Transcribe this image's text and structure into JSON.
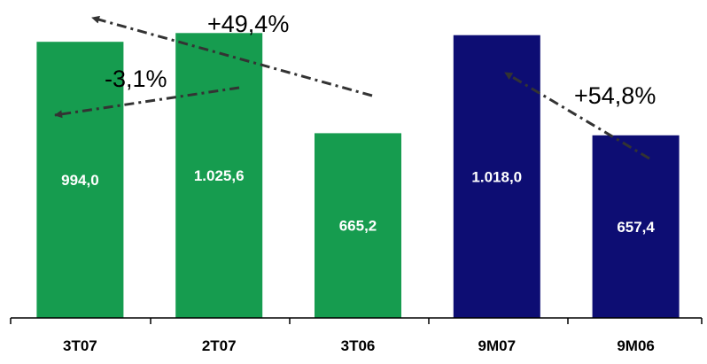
{
  "chart_data": {
    "type": "bar",
    "categories": [
      "3T07",
      "2T07",
      "3T06",
      "9M07",
      "9M06"
    ],
    "values": [
      994.0,
      1025.6,
      665.2,
      1018.0,
      657.4
    ],
    "value_labels": [
      "994,0",
      "1.025,6",
      "665,2",
      "1.018,0",
      "657,4"
    ],
    "bar_colors": [
      "#169c4f",
      "#169c4f",
      "#169c4f",
      "#0d0d73",
      "#0d0d73"
    ],
    "label_color": "#ffffff",
    "ylim": [
      0,
      1100
    ],
    "grid": false,
    "annotations": [
      {
        "text": "-3,1%",
        "from": "2T07",
        "to": "3T07"
      },
      {
        "text": "+49,4%",
        "from": "3T06",
        "to": "3T07"
      },
      {
        "text": "+54,8%",
        "from": "9M06",
        "to": "9M07"
      }
    ]
  }
}
